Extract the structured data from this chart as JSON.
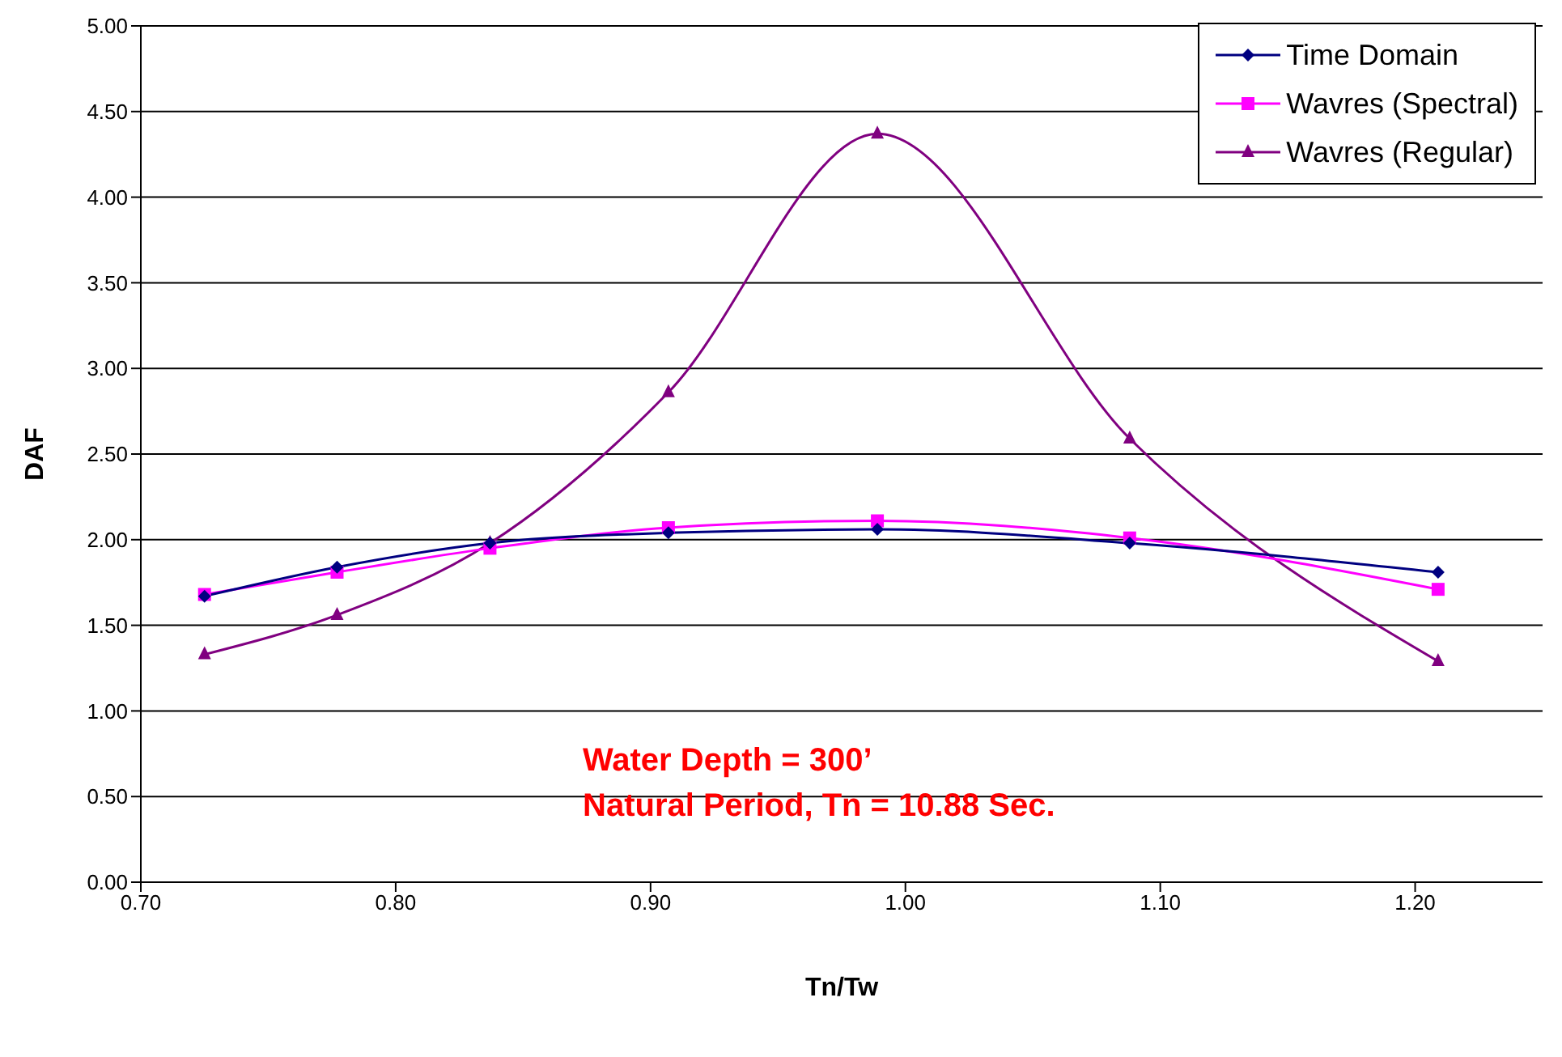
{
  "chart_data": {
    "type": "line",
    "xlabel": "Tn/Tw",
    "ylabel": "DAF",
    "x": [
      0.725,
      0.777,
      0.837,
      0.907,
      0.989,
      1.088,
      1.209
    ],
    "series": [
      {
        "name": "Time Domain",
        "color": "#000080",
        "marker": "diamond",
        "values": [
          1.67,
          1.84,
          1.98,
          2.04,
          2.06,
          1.98,
          1.81
        ]
      },
      {
        "name": "Wavres (Spectral)",
        "color": "#ff00ff",
        "marker": "square",
        "values": [
          1.68,
          1.81,
          1.95,
          2.07,
          2.11,
          2.01,
          1.71
        ]
      },
      {
        "name": "Wavres (Regular)",
        "color": "#800080",
        "marker": "triangle",
        "values": [
          1.33,
          1.56,
          1.98,
          2.86,
          4.37,
          2.59,
          1.29
        ]
      }
    ],
    "xlim": [
      0.7,
      1.25
    ],
    "xticks": [
      {
        "value": 0.7,
        "label": "0.70"
      },
      {
        "value": 0.8,
        "label": "0.80"
      },
      {
        "value": 0.9,
        "label": "0.90"
      },
      {
        "value": 1.0,
        "label": "1.00"
      },
      {
        "value": 1.1,
        "label": "1.10"
      },
      {
        "value": 1.2,
        "label": "1.20"
      }
    ],
    "ylim": [
      0,
      5
    ],
    "yticks": [
      {
        "value": 0,
        "label": "0.00"
      },
      {
        "value": 0.5,
        "label": "0.50"
      },
      {
        "value": 1,
        "label": "1.00"
      },
      {
        "value": 1.5,
        "label": "1.50"
      },
      {
        "value": 2,
        "label": "2.00"
      },
      {
        "value": 2.5,
        "label": "2.50"
      },
      {
        "value": 3,
        "label": "3.00"
      },
      {
        "value": 3.5,
        "label": "3.50"
      },
      {
        "value": 4,
        "label": "4.00"
      },
      {
        "value": 4.5,
        "label": "4.50"
      },
      {
        "value": 5,
        "label": "5.00"
      }
    ],
    "grid": "y",
    "legend": "top right",
    "line_style": "solid",
    "annotations": [
      {
        "text": "Water Depth = 300’"
      },
      {
        "text": "Natural Period, Tn = 10.88 Sec."
      }
    ]
  }
}
